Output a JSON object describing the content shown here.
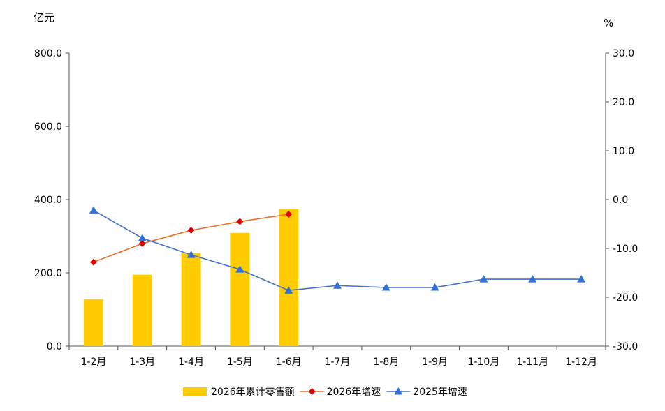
{
  "chart_data": {
    "type": "bar+line",
    "categories": [
      "1-2月",
      "1-3月",
      "1-4月",
      "1-5月",
      "1-6月",
      "1-7月",
      "1-8月",
      "1-9月",
      "1-10月",
      "1-11月",
      "1-12月"
    ],
    "left_axis": {
      "unit": "亿元",
      "min": 0,
      "max": 800,
      "ticks": [
        "0.0",
        "200.0",
        "400.0",
        "600.0",
        "800.0"
      ]
    },
    "right_axis": {
      "unit": "%",
      "min": -30,
      "max": 30,
      "ticks": [
        "-30.0",
        "-20.0",
        "-10.0",
        "0.0",
        "10.0",
        "20.0",
        "30.0"
      ]
    },
    "series": [
      {
        "name": "2026年累计零售额",
        "type": "bar",
        "axis": "left",
        "color": "#FFCC00",
        "values": [
          128,
          195,
          254,
          309,
          374,
          null,
          null,
          null,
          null,
          null,
          null
        ]
      },
      {
        "name": "2026年增速",
        "type": "line",
        "axis": "right",
        "color": "#E8702A",
        "marker": "diamond",
        "marker_color": "#E00000",
        "values": [
          -12.8,
          -9.0,
          -6.3,
          -4.5,
          -3.0,
          null,
          null,
          null,
          null,
          null,
          null
        ]
      },
      {
        "name": "2025年增速",
        "type": "line",
        "axis": "right",
        "color": "#4472C4",
        "marker": "triangle",
        "marker_color": "#2E6FD8",
        "values": [
          -2.2,
          -7.9,
          -11.3,
          -14.3,
          -18.6,
          -17.6,
          -18.0,
          -18.0,
          -16.3,
          -16.3,
          -16.3
        ]
      }
    ],
    "legend": {
      "position": "bottom"
    }
  }
}
